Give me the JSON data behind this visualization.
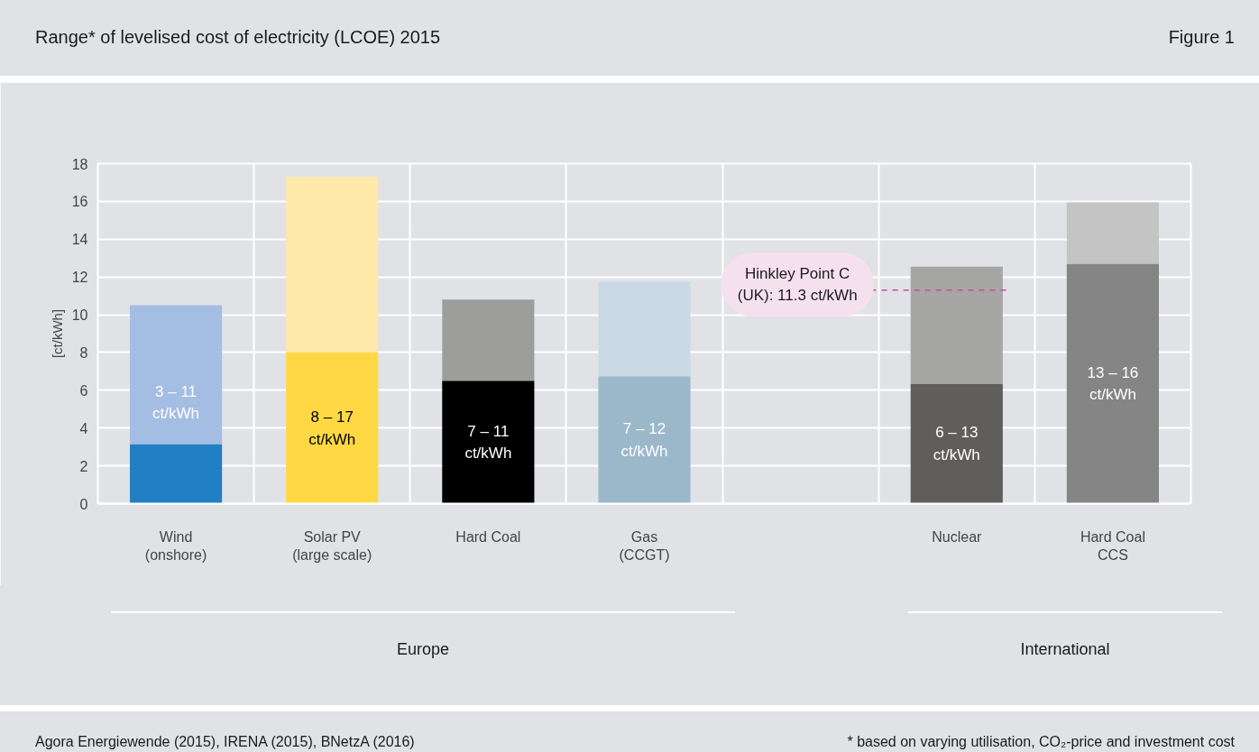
{
  "chart_data": {
    "type": "bar",
    "stacked": true,
    "title": "Range* of levelised cost of electricity (LCOE) 2015",
    "ylabel": "[ct/kWh]",
    "categories": [
      "Wind\n(onshore)",
      "Solar PV\n(large scale)",
      "Hard Coal",
      "Gas\n(CCGT)",
      null,
      "Nuclear",
      "Hard Coal\nCCS"
    ],
    "series": [
      {
        "colors": [
          "#2180c4",
          "#ffd843",
          "#000000",
          "#9bb8cb",
          null,
          "#5f5e5c",
          "#858585"
        ],
        "values": [
          3.15,
          8.0,
          6.5,
          6.75,
          null,
          6.35,
          12.7
        ]
      },
      {
        "colors": [
          "#a4bee3",
          "#fee9aa",
          "#9d9e9c",
          "#c9dae4",
          null,
          "#a6a6a4",
          "#c4c4c4"
        ],
        "values": [
          7.35,
          9.3,
          4.3,
          5.0,
          null,
          6.2,
          3.25
        ]
      }
    ],
    "ylim": [
      0,
      18
    ],
    "yticks": [
      0,
      2,
      4,
      6,
      8,
      10,
      12,
      14,
      16,
      18
    ],
    "grid": true,
    "ref_lines": [
      {
        "axis": "y",
        "value": 11.3,
        "label": "Hinkley Point C\n(UK): 11.3 ct/kWh",
        "color": "#d6469a",
        "line_style": "dashed"
      }
    ],
    "annotations": [
      "Figure 1",
      "Europe",
      "International",
      "Agora Energiewende (2015), IRENA (2015), BNetzA (2016)",
      "* based on varying utilisation, CO₂-price and investment cost",
      "3 – 11\nct/kWh",
      "8 – 17\nct/kWh",
      "7 – 11\nct/kWh",
      "7 – 12\nct/kWh",
      "6 – 13\nct/kWh",
      "13 – 16\nct/kWh"
    ]
  }
}
